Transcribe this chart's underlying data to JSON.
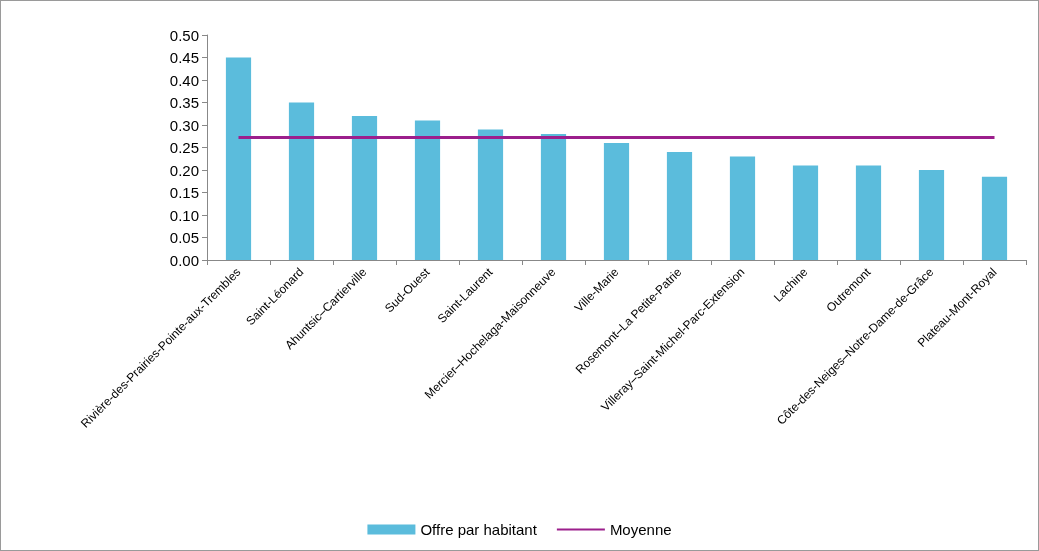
{
  "chart_data": {
    "type": "bar",
    "categories": [
      "Rivière-des-Prairies-Pointe-aux-Trembles",
      "Saint-Léonard",
      "Ahuntsic–Cartierville",
      "Sud-Ouest",
      "Saint-Laurent",
      "Mercier–Hochelaga-Maisonneuve",
      "Ville-Marie",
      "Rosemont–La Petite-Patrie",
      "Villeray–Saint-Michel-Parc-Extension",
      "Lachine",
      "Outremont",
      "Côte-des-Neiges–Notre-Dame-de-Grâce",
      "Plateau-Mont-Royal"
    ],
    "series": [
      {
        "name": "Offre par habitant",
        "color": "#5bbcdc",
        "values": [
          0.45,
          0.35,
          0.32,
          0.31,
          0.29,
          0.28,
          0.26,
          0.24,
          0.23,
          0.21,
          0.21,
          0.2,
          0.185
        ]
      },
      {
        "name": "Moyenne",
        "type": "line",
        "color": "#9c1f8c",
        "values": [
          0.272,
          0.272,
          0.272,
          0.272,
          0.272,
          0.272,
          0.272,
          0.272,
          0.272,
          0.272,
          0.272,
          0.272,
          0.272
        ]
      }
    ],
    "ylim": [
      0,
      0.5
    ],
    "yticks": [
      {
        "value": 0,
        "label": "0.00"
      },
      {
        "value": 0.05,
        "label": "0.05"
      },
      {
        "value": 0.1,
        "label": "0.10"
      },
      {
        "value": 0.15,
        "label": "0.15"
      },
      {
        "value": 0.2,
        "label": "0.20"
      },
      {
        "value": 0.25,
        "label": "0.25"
      },
      {
        "value": 0.3,
        "label": "0.30"
      },
      {
        "value": 0.35,
        "label": "0.35"
      },
      {
        "value": 0.4,
        "label": "0.40"
      },
      {
        "value": 0.45,
        "label": "0.45"
      },
      {
        "value": 0.5,
        "label": "0.50"
      }
    ],
    "grid": false,
    "legend": "bottom",
    "marker": "none"
  }
}
